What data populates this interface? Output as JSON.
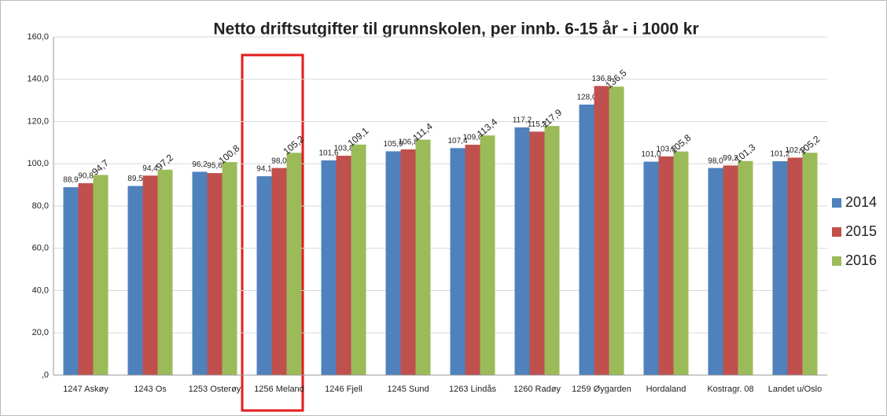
{
  "chart_data": {
    "type": "bar",
    "title": "Netto driftsutgifter til grunnskolen, per innb. 6-15 år - i 1000 kr",
    "categories": [
      "1247 Askøy",
      "1243 Os",
      "1253 Osterøy",
      "1256 Meland",
      "1246 Fjell",
      "1245 Sund",
      "1263 Lindås",
      "1260 Radøy",
      "1259 Øygarden",
      "Hordaland",
      "Kostragr. 08",
      "Landet u/Oslo"
    ],
    "series": [
      {
        "name": "2014",
        "color": "#4f81bd",
        "values": [
          88.9,
          89.5,
          96.2,
          94.1,
          101.6,
          105.9,
          107.4,
          117.2,
          128.0,
          101.0,
          98.0,
          101.2
        ],
        "value_labels": [
          "88,9",
          "89,5",
          "96,2",
          "94,1",
          "101,6",
          "105,9",
          "107,4",
          "117,2",
          "128,0",
          "101,0",
          "98,0",
          "101,2"
        ]
      },
      {
        "name": "2015",
        "color": "#c0504d",
        "values": [
          90.8,
          94.4,
          95.6,
          98.0,
          103.8,
          106.8,
          109.0,
          115.2,
          136.8,
          103.5,
          99.2,
          102.9
        ],
        "value_labels": [
          "90,8",
          "94,4",
          "95,6",
          "98,0",
          "103,8",
          "106,8",
          "109,0",
          "115,2",
          "136,8",
          "103,5",
          "99,2",
          "102,9"
        ]
      },
      {
        "name": "2016",
        "color": "#9bbb59",
        "values": [
          94.7,
          97.2,
          100.8,
          105.2,
          109.1,
          111.4,
          113.4,
          117.9,
          136.5,
          105.8,
          101.3,
          105.2
        ],
        "value_labels": [
          "94,7",
          "97,2",
          "100,8",
          "105,2",
          "109,1",
          "111,4",
          "113,4",
          "117,9",
          "136,5",
          "105,8",
          "101,3",
          "105,2"
        ]
      }
    ],
    "ylim": [
      0,
      160
    ],
    "yticks": [
      {
        "value": 0,
        "label": ",0"
      },
      {
        "value": 20,
        "label": "20,0"
      },
      {
        "value": 40,
        "label": "40,0"
      },
      {
        "value": 60,
        "label": "60,0"
      },
      {
        "value": 80,
        "label": "80,0"
      },
      {
        "value": 100,
        "label": "100,0"
      },
      {
        "value": 120,
        "label": "120,0"
      },
      {
        "value": 140,
        "label": "140,0"
      },
      {
        "value": 160,
        "label": "160,0"
      }
    ],
    "grid": true,
    "legend": "right"
  }
}
